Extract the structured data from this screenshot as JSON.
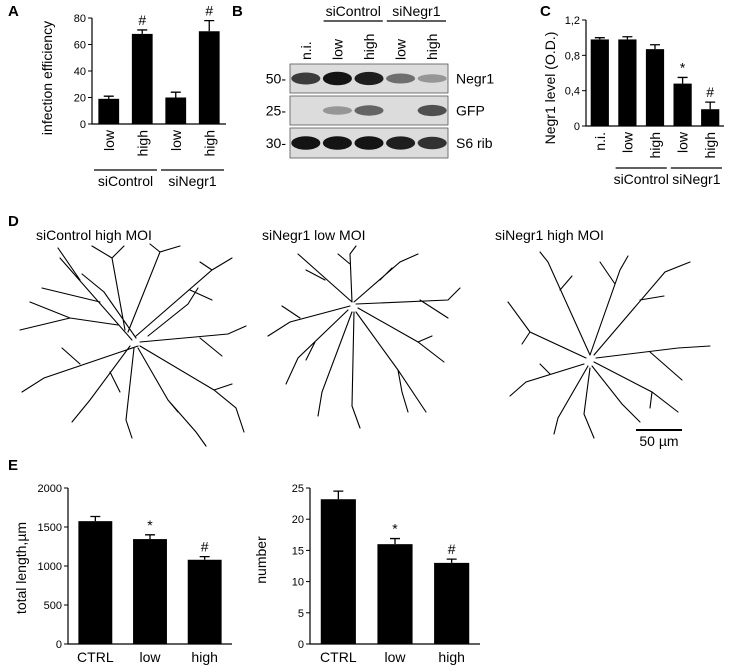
{
  "panels": {
    "A": {
      "letter": "A",
      "chart_data": {
        "type": "bar",
        "ylabel": "infection efficiency",
        "ylim": [
          0,
          80
        ],
        "yticks": [
          0,
          20,
          40,
          60,
          80
        ],
        "categories": [
          "low",
          "high",
          "low",
          "high"
        ],
        "values": [
          19,
          68,
          20,
          70
        ],
        "errors": [
          2,
          3,
          4,
          8
        ],
        "markers": [
          "",
          "#",
          "",
          "#"
        ],
        "groups": [
          {
            "label": "siControl",
            "span": [
              0,
              1
            ]
          },
          {
            "label": "siNegr1",
            "span": [
              2,
              3
            ]
          }
        ]
      }
    },
    "B": {
      "letter": "B",
      "lanes": [
        "n.i.",
        "low",
        "high",
        "low",
        "high"
      ],
      "groups": [
        {
          "label": "siControl",
          "span": [
            1,
            2
          ]
        },
        {
          "label": "siNegr1",
          "span": [
            3,
            4
          ]
        }
      ],
      "bands": [
        {
          "marker": "50-",
          "name": "Negr1",
          "intensity": [
            0.75,
            0.95,
            0.9,
            0.5,
            0.3
          ]
        },
        {
          "marker": "25-",
          "name": "GFP",
          "intensity": [
            0.0,
            0.3,
            0.55,
            0.0,
            0.65
          ]
        },
        {
          "marker": "30-",
          "name": "S6 rib",
          "intensity": [
            0.95,
            0.95,
            0.95,
            0.9,
            0.8
          ]
        }
      ]
    },
    "C": {
      "letter": "C",
      "chart_data": {
        "type": "bar",
        "ylabel": "Negr1 level (O.D.)",
        "ylim": [
          0,
          1.2
        ],
        "yticks": [
          0,
          0.4,
          0.8,
          1.2
        ],
        "yticklabels": [
          "0",
          "0,4",
          "0,8",
          "1,2"
        ],
        "categories": [
          "n.i.",
          "low",
          "high",
          "low",
          "high"
        ],
        "values": [
          0.98,
          0.98,
          0.87,
          0.48,
          0.19
        ],
        "errors": [
          0.02,
          0.03,
          0.05,
          0.07,
          0.08
        ],
        "markers": [
          "",
          "",
          "",
          "*",
          "#"
        ],
        "groups": [
          {
            "label": "siControl",
            "span": [
              1,
              2
            ]
          },
          {
            "label": "siNegr1",
            "span": [
              3,
              4
            ]
          }
        ]
      }
    },
    "D": {
      "letter": "D",
      "titles": [
        "siControl high MOI",
        "siNegr1 low MOI",
        "siNegr1 high MOI"
      ],
      "scale_bar": "50 µm"
    },
    "E": {
      "letter": "E",
      "chart_data": [
        {
          "type": "bar",
          "ylabel": "total length,µm",
          "ylim": [
            0,
            2000
          ],
          "yticks": [
            0,
            500,
            1000,
            1500,
            2000
          ],
          "categories": [
            "CTRL",
            "low",
            "high"
          ],
          "values": [
            1575,
            1345,
            1080
          ],
          "errors": [
            60,
            55,
            40
          ],
          "markers": [
            "",
            "*",
            "#"
          ]
        },
        {
          "type": "bar",
          "ylabel": "number",
          "ylim": [
            0,
            25
          ],
          "yticks": [
            0,
            5,
            10,
            15,
            20,
            25
          ],
          "categories": [
            "CTRL",
            "low",
            "high"
          ],
          "values": [
            23.2,
            16.0,
            13.0
          ],
          "errors": [
            1.3,
            0.9,
            0.6
          ],
          "markers": [
            "",
            "*",
            "#"
          ]
        }
      ]
    }
  }
}
